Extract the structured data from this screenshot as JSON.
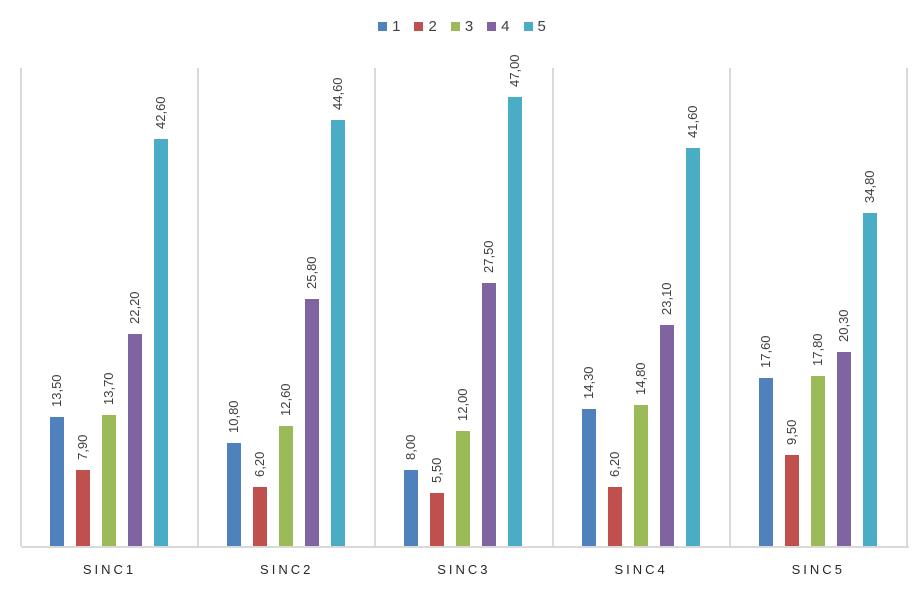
{
  "chart_data": {
    "type": "bar",
    "title": "",
    "xlabel": "",
    "ylabel": "",
    "ylim": [
      0,
      50
    ],
    "grid": false,
    "legend_position": "top",
    "categories": [
      "SINC1",
      "SINC2",
      "SINC3",
      "SINC4",
      "SINC5"
    ],
    "series": [
      {
        "name": "1",
        "color": "#4f81bd",
        "values": [
          13.5,
          10.8,
          8.0,
          14.3,
          17.6
        ],
        "labels": [
          "13,50",
          "10,80",
          "8,00",
          "14,30",
          "17,60"
        ]
      },
      {
        "name": "2",
        "color": "#c0504d",
        "values": [
          7.9,
          6.2,
          5.5,
          6.2,
          9.5
        ],
        "labels": [
          "7,90",
          "6,20",
          "5,50",
          "6,20",
          "9,50"
        ]
      },
      {
        "name": "3",
        "color": "#9bbb59",
        "values": [
          13.7,
          12.6,
          12.0,
          14.8,
          17.8
        ],
        "labels": [
          "13,70",
          "12,60",
          "12,00",
          "14,80",
          "17,80"
        ]
      },
      {
        "name": "4",
        "color": "#8064a2",
        "values": [
          22.2,
          25.8,
          27.5,
          23.1,
          20.3
        ],
        "labels": [
          "22,20",
          "25,80",
          "27,50",
          "23,10",
          "20,30"
        ]
      },
      {
        "name": "5",
        "color": "#4bacc6",
        "values": [
          42.6,
          44.6,
          47.0,
          41.6,
          34.8
        ],
        "labels": [
          "42,60",
          "44,60",
          "47,00",
          "41,60",
          "34,80"
        ]
      }
    ]
  },
  "legend": {
    "items": [
      {
        "label": "1",
        "color": "#4f81bd"
      },
      {
        "label": "2",
        "color": "#c0504d"
      },
      {
        "label": "3",
        "color": "#9bbb59"
      },
      {
        "label": "4",
        "color": "#8064a2"
      },
      {
        "label": "5",
        "color": "#4bacc6"
      }
    ]
  }
}
